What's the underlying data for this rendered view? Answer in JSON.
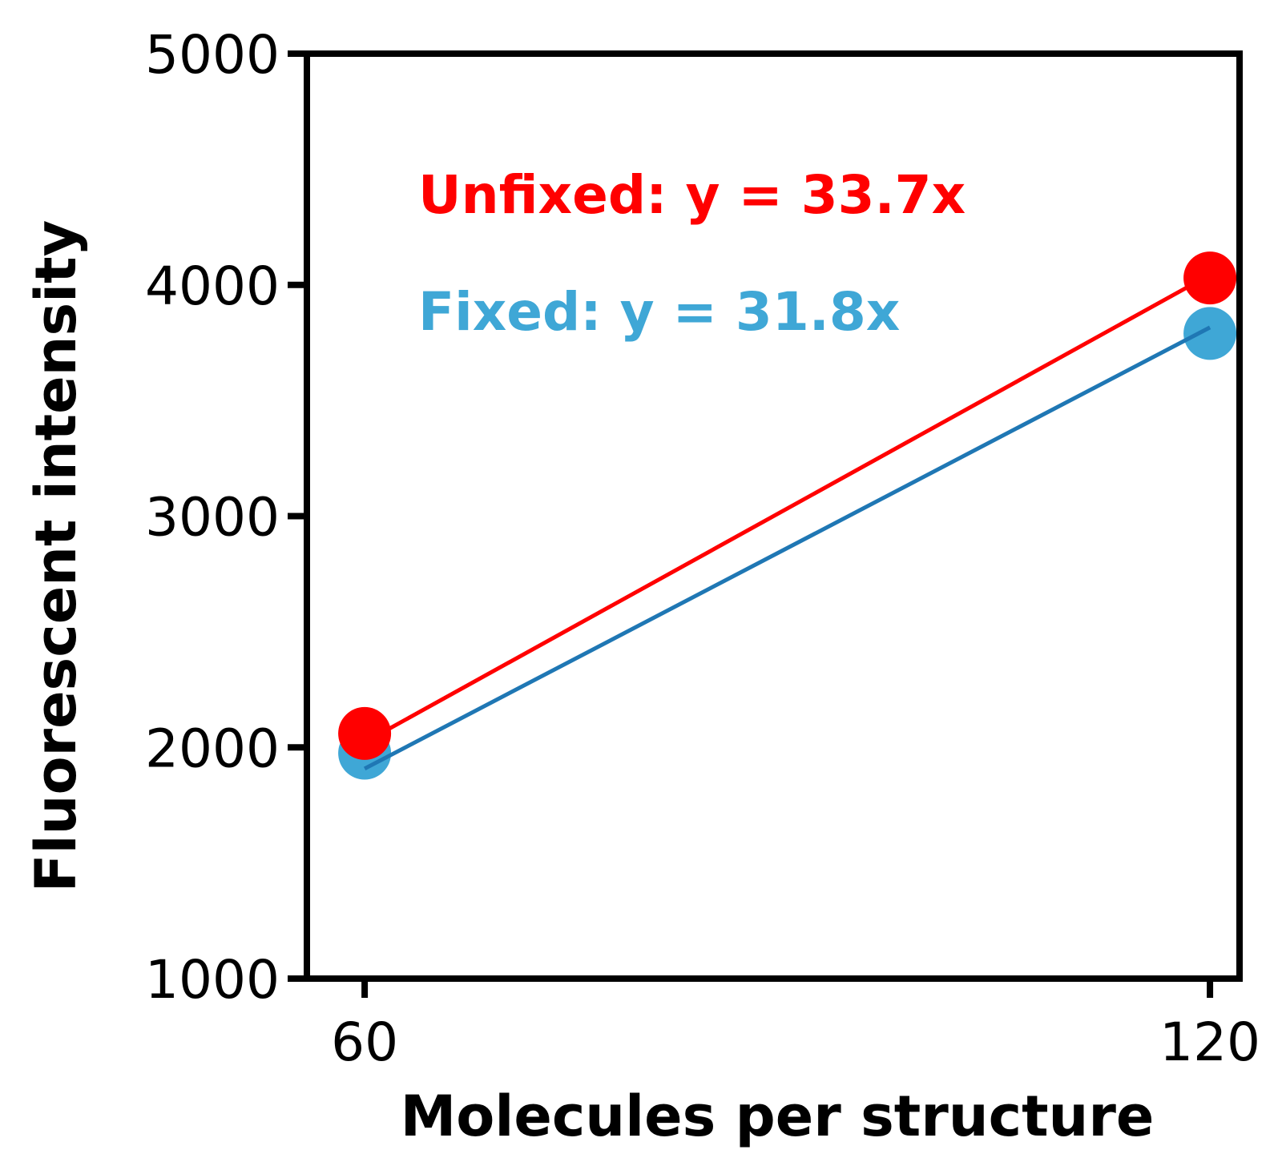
{
  "chart_data": {
    "type": "scatter",
    "xlabel": "Molecules per structure",
    "ylabel": "Fluorescent intensity",
    "xlim": [
      55.9,
      122.1
    ],
    "ylim": [
      1000,
      5000
    ],
    "x_ticks": [
      60,
      120
    ],
    "x_tick_labels": [
      "60",
      "120"
    ],
    "y_ticks": [
      1000,
      2000,
      3000,
      4000,
      5000
    ],
    "y_tick_labels": [
      "1000",
      "2000",
      "3000",
      "4000",
      "5000"
    ],
    "grid": false,
    "series": [
      {
        "key": "fixed",
        "color": "#3fa7d6",
        "fit_color": "#1f77b4",
        "points": [
          {
            "x": 60,
            "y": 1975
          },
          {
            "x": 120,
            "y": 3790
          }
        ],
        "fit": [
          {
            "x": 60,
            "y": 1908
          },
          {
            "x": 120,
            "y": 3816
          }
        ]
      },
      {
        "key": "unfixed",
        "color": "#ff0000",
        "fit_color": "#ff0000",
        "points": [
          {
            "x": 60,
            "y": 2060
          },
          {
            "x": 120,
            "y": 4030
          }
        ],
        "fit": [
          {
            "x": 60,
            "y": 2022
          },
          {
            "x": 120,
            "y": 4044
          }
        ]
      }
    ],
    "annotations": [
      {
        "key": "unfixed",
        "text": "Unfixed: y = 33.7x",
        "color": "#ff0000"
      },
      {
        "key": "fixed",
        "text": "Fixed: y = 31.8x",
        "color": "#3fa7d6"
      }
    ]
  }
}
